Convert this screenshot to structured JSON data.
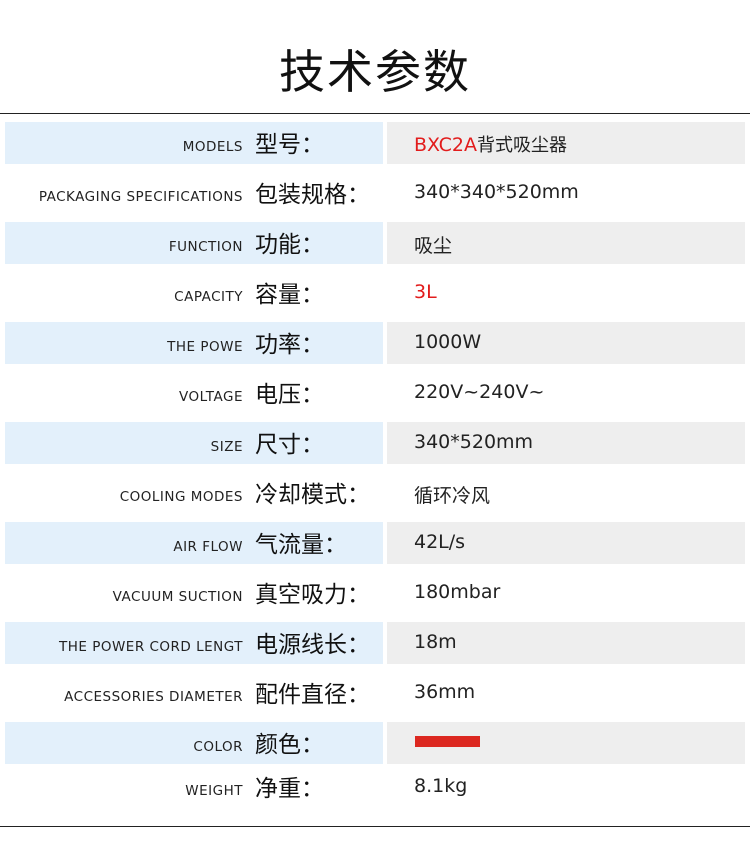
{
  "title": "技术参数",
  "rows": [
    {
      "en": "MODELS",
      "cn": "型号：",
      "value_highlight": "BXC2A",
      "value": "背式吸尘器"
    },
    {
      "en": "PACKAGING SPECIFICATIONS",
      "cn": "包装规格：",
      "value": "340*340*520mm"
    },
    {
      "en": "FUNCTION",
      "cn": "功能：",
      "value": "吸尘"
    },
    {
      "en": "CAPACITY",
      "cn": "容量：",
      "value_highlight": "3L"
    },
    {
      "en": "THE POWE",
      "cn": "功率：",
      "value": "1000W"
    },
    {
      "en": "VOLTAGE",
      "cn": "电压：",
      "value": "220V~240V~"
    },
    {
      "en": "SIZE",
      "cn": "尺寸：",
      "value": "340*520mm"
    },
    {
      "en": "COOLING MODES",
      "cn": "冷却模式：",
      "value": "循环冷风"
    },
    {
      "en": "AIR FLOW",
      "cn": "气流量：",
      "value": "42L/s"
    },
    {
      "en": "VACUUM SUCTION",
      "cn": "真空吸力：",
      "value": "180mbar"
    },
    {
      "en": "THE POWER CORD LENGT",
      "cn": "电源线长：",
      "value": "18m"
    },
    {
      "en": "ACCESSORIES DIAMETER",
      "cn": "配件直径：",
      "value": "36mm"
    },
    {
      "en": "COLOR",
      "cn": "颜色：",
      "swatch": "#dc2820"
    },
    {
      "en": "WEIGHT",
      "cn": "净重：",
      "value": "8.1kg"
    }
  ],
  "colors": {
    "shade_left": "#e3f0fb",
    "shade_right": "#eeeeee",
    "highlight": "#e21c1c"
  }
}
